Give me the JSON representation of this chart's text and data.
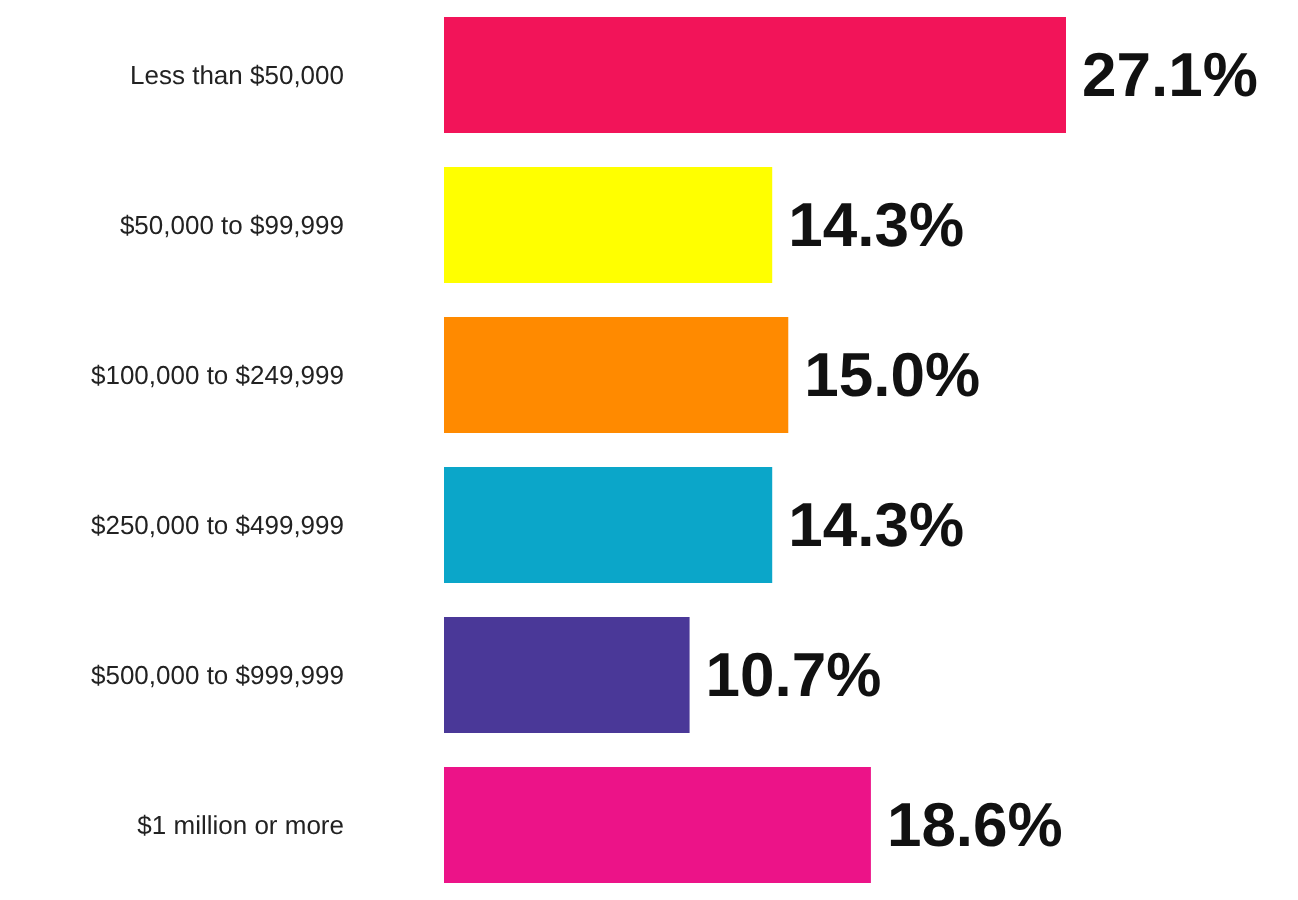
{
  "chart_data": {
    "type": "bar",
    "orientation": "horizontal",
    "categories": [
      "Less than $50,000",
      "$50,000 to $99,999",
      "$100,000 to $249,999",
      "$250,000 to $499,999",
      "$500,000 to $999,999",
      "$1 million or more"
    ],
    "values": [
      27.1,
      14.3,
      15.0,
      14.3,
      10.7,
      18.6
    ],
    "colors": [
      "#f21459",
      "#ffff00",
      "#ff8a00",
      "#0ba6c9",
      "#4a3898",
      "#ec1388"
    ],
    "value_labels": [
      "27.1%",
      "14.3%",
      "15.0%",
      "14.3%",
      "10.7%",
      "18.6%"
    ]
  }
}
